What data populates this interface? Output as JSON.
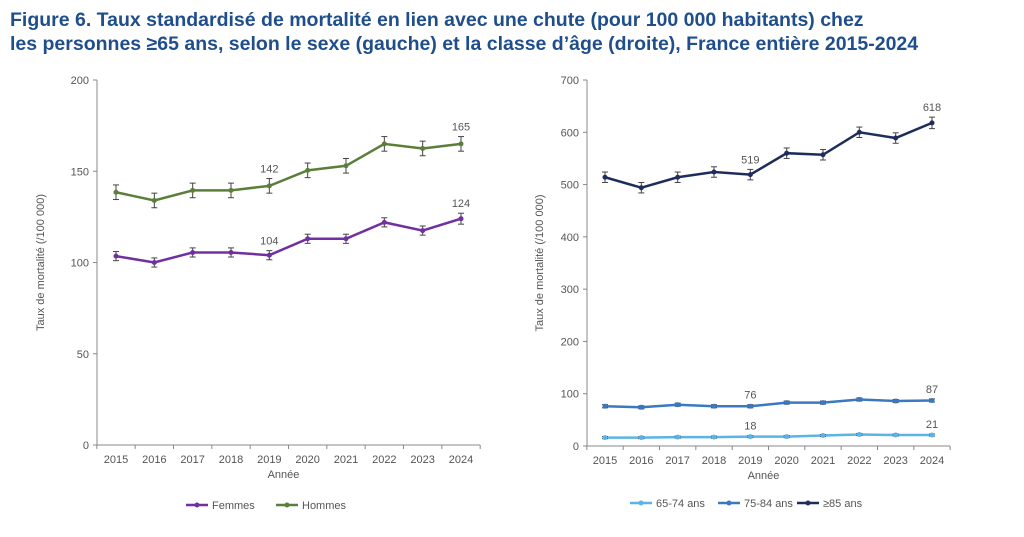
{
  "title_line1": "Figure 6. Taux standardisé de mortalité en lien avec une chute (pour 100 000 habitants) chez",
  "title_line2": "les personnes ≥65 ans, selon le sexe (gauche) et la classe d’âge (droite), France entière 2015-2024",
  "chart_data": [
    {
      "type": "line",
      "xlabel": "Année",
      "ylabel": "Taux de mortalité (/100 000)",
      "x": [
        2015,
        2016,
        2017,
        2018,
        2019,
        2020,
        2021,
        2022,
        2023,
        2024
      ],
      "ylim": [
        0,
        200
      ],
      "yticks": [
        0,
        50,
        100,
        150,
        200
      ],
      "grid": false,
      "legend": "bottom",
      "error_bars": true,
      "series": [
        {
          "name": "Femmes",
          "color": "#7030a0",
          "values": [
            103.5,
            100,
            105.5,
            105.5,
            104,
            113,
            113,
            122,
            117.5,
            124
          ],
          "error": [
            2.5,
            2.5,
            2.5,
            2.5,
            2.5,
            2.5,
            2.5,
            2.5,
            2.5,
            3
          ],
          "labels": {
            "2019": "104",
            "2024": "124"
          }
        },
        {
          "name": "Hommes",
          "color": "#5b7f3a",
          "values": [
            138.5,
            134,
            139.5,
            139.5,
            142,
            150.5,
            153,
            165,
            162.5,
            165
          ],
          "error": [
            4,
            4,
            4,
            4,
            4,
            4,
            4,
            4,
            4,
            4
          ],
          "labels": {
            "2019": "142",
            "2024": "165"
          }
        }
      ]
    },
    {
      "type": "line",
      "xlabel": "Année",
      "ylabel": "Taux de mortalité (/100 000)",
      "x": [
        2015,
        2016,
        2017,
        2018,
        2019,
        2020,
        2021,
        2022,
        2023,
        2024
      ],
      "ylim": [
        0,
        700
      ],
      "yticks": [
        0,
        100,
        200,
        300,
        400,
        500,
        600,
        700
      ],
      "grid": false,
      "legend": "bottom",
      "error_bars": true,
      "series": [
        {
          "name": "65-74 ans",
          "color": "#5bb4e8",
          "values": [
            16,
            16,
            17,
            17,
            18,
            18,
            20,
            22,
            21,
            21
          ],
          "error": [
            2,
            2,
            2,
            2,
            2,
            2,
            2,
            2,
            2,
            2
          ],
          "labels": {
            "2019": "18",
            "2024": "21"
          }
        },
        {
          "name": "75-84 ans",
          "color": "#3a78c2",
          "values": [
            76,
            74,
            79,
            76,
            76,
            83,
            83,
            89,
            86,
            87
          ],
          "error": [
            3,
            3,
            3,
            3,
            3,
            3,
            3,
            3,
            3,
            3
          ],
          "labels": {
            "2019": "76",
            "2024": "87"
          }
        },
        {
          "name": "≥85 ans",
          "color": "#1f2d5c",
          "values": [
            514,
            494,
            514,
            524,
            519,
            560,
            557,
            600,
            589,
            618
          ],
          "error": [
            10,
            10,
            10,
            10,
            10,
            10,
            10,
            10,
            10,
            11
          ],
          "labels": {
            "2019": "519",
            "2024": "618"
          }
        }
      ]
    }
  ]
}
